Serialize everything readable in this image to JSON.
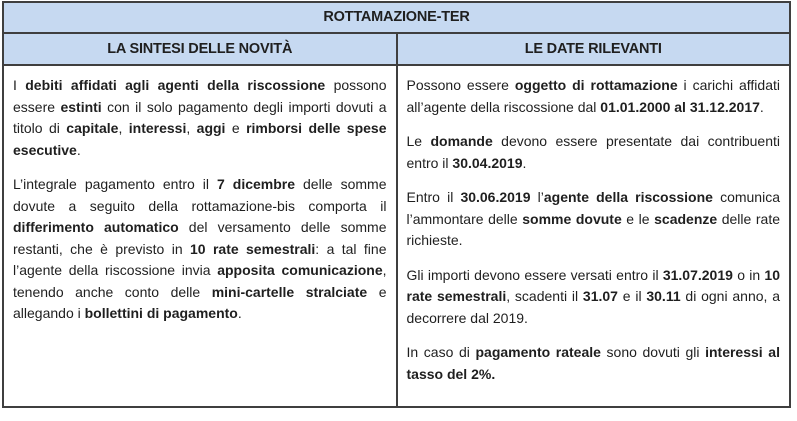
{
  "colors": {
    "header_bg": "#c6d9f1",
    "border": "#3f3f3f",
    "text": "#1f1f1f",
    "page_bg": "#ffffff"
  },
  "table": {
    "title": "ROTTAMAZIONE-TER",
    "columns": [
      {
        "header": "LA SINTESI DELLE NOVITÀ",
        "paragraphs": [
          [
            {
              "t": "I ",
              "b": false
            },
            {
              "t": "debiti affidati agli agenti della riscossione",
              "b": true
            },
            {
              "t": " possono essere ",
              "b": false
            },
            {
              "t": "estinti",
              "b": true
            },
            {
              "t": " con il solo pagamento degli importi dovuti a titolo di ",
              "b": false
            },
            {
              "t": "capitale",
              "b": true
            },
            {
              "t": ", ",
              "b": false
            },
            {
              "t": "interessi",
              "b": true
            },
            {
              "t": ", ",
              "b": false
            },
            {
              "t": "aggi",
              "b": true
            },
            {
              "t": " e ",
              "b": false
            },
            {
              "t": "rimborsi delle spese esecutive",
              "b": true
            },
            {
              "t": ".",
              "b": false
            }
          ],
          [
            {
              "t": "L’integrale pagamento entro il ",
              "b": false
            },
            {
              "t": "7 dicembre",
              "b": true
            },
            {
              "t": " delle somme dovute a seguito della rottamazione-bis comporta il ",
              "b": false
            },
            {
              "t": "differimento automatico",
              "b": true
            },
            {
              "t": " del versamento delle somme restanti, che è previsto in ",
              "b": false
            },
            {
              "t": "10 rate semestrali",
              "b": true
            },
            {
              "t": ": a tal fine l’agente della riscossione invia ",
              "b": false
            },
            {
              "t": "apposita comunicazione",
              "b": true
            },
            {
              "t": ", tenendo anche conto delle ",
              "b": false
            },
            {
              "t": "mini-cartelle stralciate",
              "b": true
            },
            {
              "t": " e allegando i ",
              "b": false
            },
            {
              "t": "bollettini di pagamento",
              "b": true
            },
            {
              "t": ".",
              "b": false
            }
          ]
        ]
      },
      {
        "header": "LE DATE RILEVANTI",
        "paragraphs": [
          [
            {
              "t": "Possono essere ",
              "b": false
            },
            {
              "t": "oggetto di rottamazione",
              "b": true
            },
            {
              "t": " i carichi affidati all’agente della riscossione dal ",
              "b": false
            },
            {
              "t": "01.01.2000 al 31.12.2017",
              "b": true
            },
            {
              "t": ".",
              "b": false
            }
          ],
          [
            {
              "t": "Le ",
              "b": false
            },
            {
              "t": "domande",
              "b": true
            },
            {
              "t": " devono essere presentate dai contribuenti entro il ",
              "b": false
            },
            {
              "t": "30.04.2019",
              "b": true
            },
            {
              "t": ".",
              "b": false
            }
          ],
          [
            {
              "t": "Entro il ",
              "b": false
            },
            {
              "t": "30.06.2019",
              "b": true
            },
            {
              "t": " l’",
              "b": false
            },
            {
              "t": "agente della riscossione",
              "b": true
            },
            {
              "t": " comunica l’ammontare delle ",
              "b": false
            },
            {
              "t": "somme dovute",
              "b": true
            },
            {
              "t": " e le ",
              "b": false
            },
            {
              "t": "scadenze",
              "b": true
            },
            {
              "t": " delle rate richieste.",
              "b": false
            }
          ],
          [
            {
              "t": "Gli importi devono essere versati entro il ",
              "b": false
            },
            {
              "t": "31.07.2019",
              "b": true
            },
            {
              "t": " o in ",
              "b": false
            },
            {
              "t": "10 rate semestrali",
              "b": true
            },
            {
              "t": ", scadenti il ",
              "b": false
            },
            {
              "t": "31.07",
              "b": true
            },
            {
              "t": " e il ",
              "b": false
            },
            {
              "t": "30.11",
              "b": true
            },
            {
              "t": " di ogni anno, a decorrere dal 2019.",
              "b": false
            }
          ],
          [
            {
              "t": "In caso di ",
              "b": false
            },
            {
              "t": "pagamento rateale",
              "b": true
            },
            {
              "t": " sono dovuti gli ",
              "b": false
            },
            {
              "t": "interessi al tasso del 2%.",
              "b": true
            }
          ]
        ]
      }
    ]
  }
}
